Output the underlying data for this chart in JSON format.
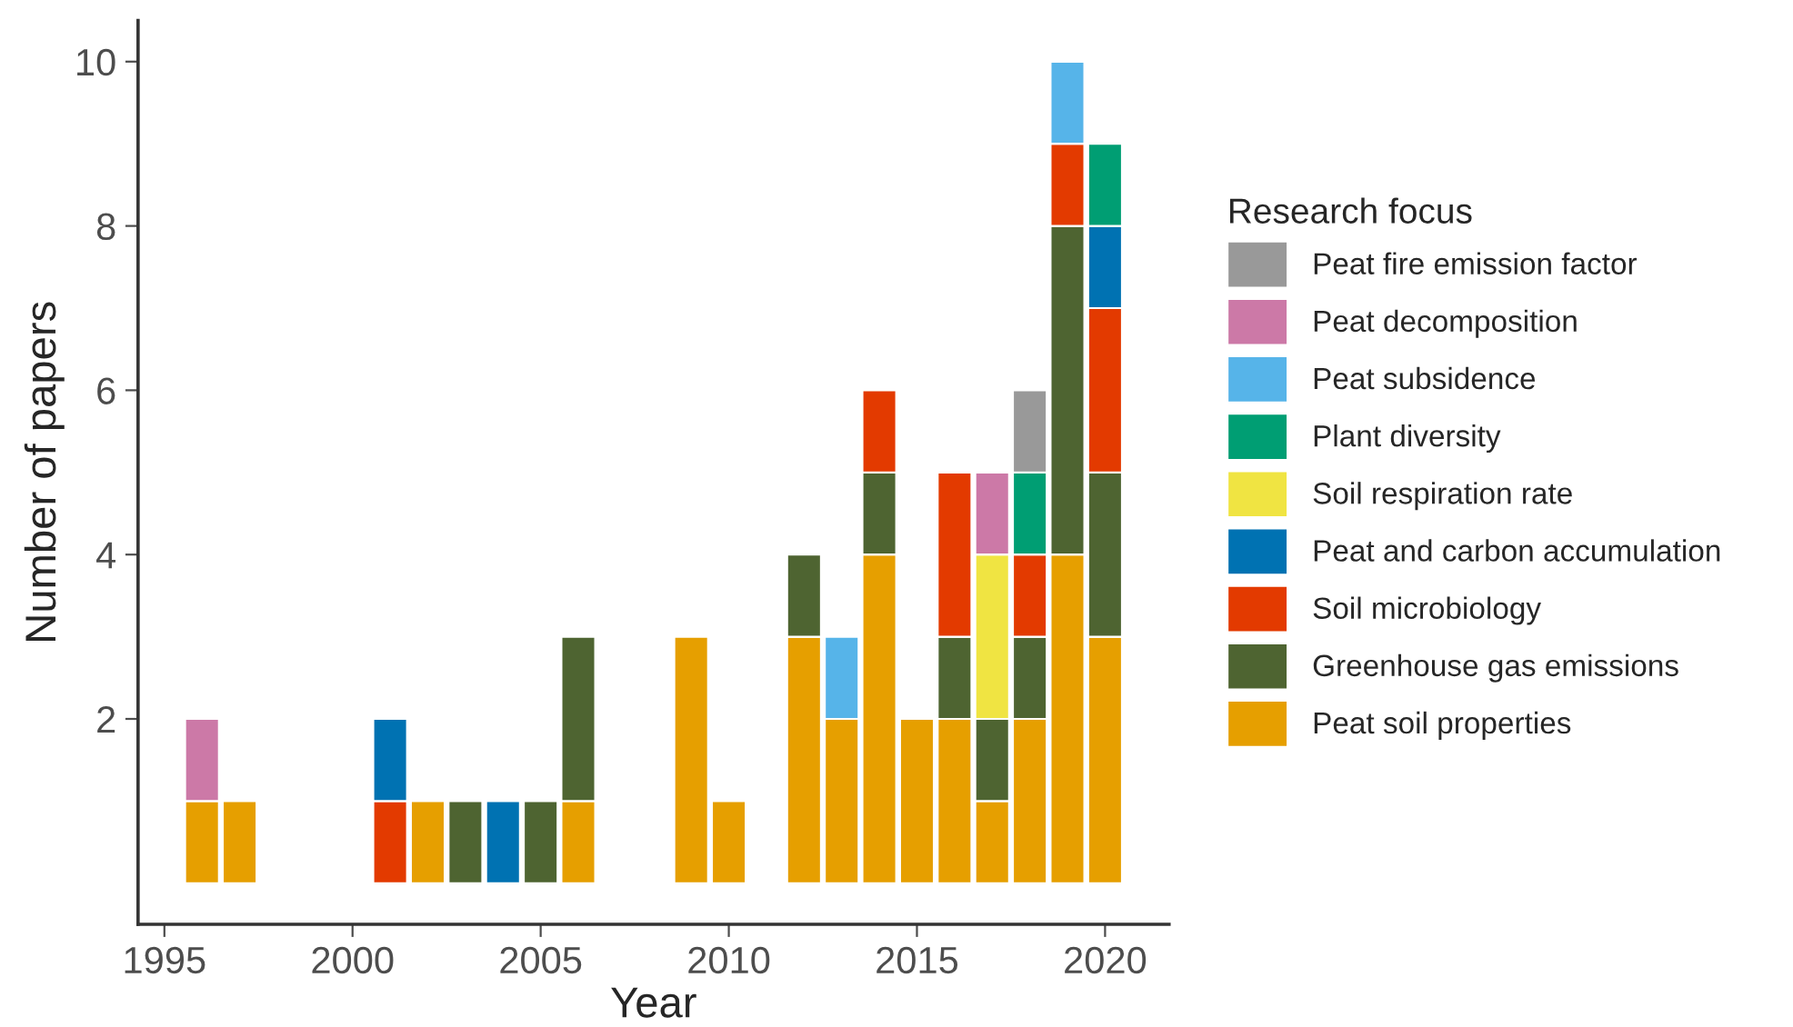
{
  "chart_data": {
    "type": "bar",
    "stacked": true,
    "xlabel": "Year",
    "ylabel": "Number of papers",
    "legend_title": "Research focus",
    "legend": "right",
    "grid": false,
    "x": [
      1996,
      1997,
      2001,
      2002,
      2003,
      2004,
      2005,
      2006,
      2009,
      2010,
      2012,
      2013,
      2014,
      2015,
      2016,
      2017,
      2018,
      2019,
      2020
    ],
    "xlim": [
      1994.3,
      2021.7
    ],
    "xticks": [
      1995,
      2000,
      2005,
      2010,
      2015,
      2020
    ],
    "ylim": [
      -0.5,
      10.5
    ],
    "yticks": [
      2,
      4,
      6,
      8,
      10
    ],
    "series": [
      {
        "name": "Peat soil properties",
        "color": "#e69f00",
        "values": [
          1,
          1,
          null,
          1,
          null,
          null,
          null,
          1,
          3,
          1,
          3,
          2,
          4,
          2,
          2,
          1,
          2,
          4,
          3
        ]
      },
      {
        "name": "Greenhouse gas emissions",
        "color": "#4e6431",
        "values": [
          null,
          null,
          null,
          null,
          1,
          null,
          1,
          2,
          null,
          null,
          1,
          null,
          1,
          null,
          1,
          1,
          1,
          4,
          2
        ]
      },
      {
        "name": "Soil microbiology",
        "color": "#e33a00",
        "values": [
          null,
          null,
          1,
          null,
          null,
          null,
          null,
          null,
          null,
          null,
          null,
          null,
          1,
          null,
          2,
          null,
          1,
          1,
          2
        ]
      },
      {
        "name": "Peat and carbon accumulation",
        "color": "#0072b2",
        "values": [
          null,
          null,
          1,
          null,
          null,
          1,
          null,
          null,
          null,
          null,
          null,
          null,
          null,
          null,
          null,
          null,
          null,
          null,
          1
        ]
      },
      {
        "name": "Soil respiration rate",
        "color": "#f0e442",
        "values": [
          null,
          null,
          null,
          null,
          null,
          null,
          null,
          null,
          null,
          null,
          null,
          null,
          null,
          null,
          null,
          2,
          null,
          null,
          null
        ]
      },
      {
        "name": "Plant diversity",
        "color": "#009e73",
        "values": [
          null,
          null,
          null,
          null,
          null,
          null,
          null,
          null,
          null,
          null,
          null,
          null,
          null,
          null,
          null,
          null,
          1,
          null,
          1
        ]
      },
      {
        "name": "Peat subsidence",
        "color": "#56b4e9",
        "values": [
          null,
          null,
          null,
          null,
          null,
          null,
          null,
          null,
          null,
          null,
          null,
          1,
          null,
          null,
          null,
          null,
          null,
          1,
          null
        ]
      },
      {
        "name": "Peat decomposition",
        "color": "#cc79a7",
        "values": [
          1,
          null,
          null,
          null,
          null,
          null,
          null,
          null,
          null,
          null,
          null,
          null,
          null,
          null,
          null,
          1,
          null,
          null,
          null
        ]
      },
      {
        "name": "Peat fire emission factor",
        "color": "#999999",
        "values": [
          null,
          null,
          null,
          null,
          null,
          null,
          null,
          null,
          null,
          null,
          null,
          null,
          null,
          null,
          null,
          null,
          1,
          null,
          null
        ]
      }
    ]
  }
}
